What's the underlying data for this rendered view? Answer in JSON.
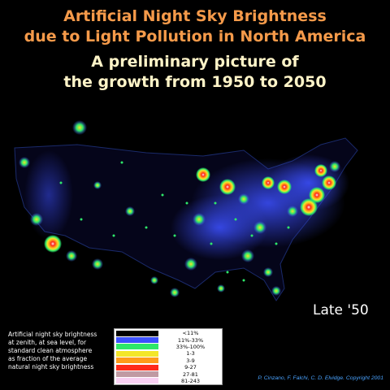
{
  "title": {
    "line1": "Artificial Night Sky Brightness",
    "line2": "due to Light Pollution in North America",
    "line3": "A preliminary picture of",
    "line4": "the growth from 1950 to 2050"
  },
  "era_label": "Late '50",
  "legend": {
    "description": [
      "Artificial night sky brightness",
      "at zenith, at sea level, for",
      "standard clean atmosphere",
      "as fraction of the average",
      "natural night sky brightness"
    ],
    "items": [
      {
        "label": "<11%",
        "color": "#000000"
      },
      {
        "label": "11%-33%",
        "color": "#3c50ff"
      },
      {
        "label": "33%-100%",
        "color": "#2ee86a"
      },
      {
        "label": "1-3",
        "color": "#f3e62a"
      },
      {
        "label": "3-9",
        "color": "#ff9b1a"
      },
      {
        "label": "9-27",
        "color": "#ff2a1a"
      },
      {
        "label": "27-81",
        "color": "#c09aa3"
      },
      {
        "label": "81-243",
        "color": "#f8d0f2"
      }
    ]
  },
  "credit": "P. Cinzano, F. Falchi, C. D. Elvidge. Copyright 2001"
}
